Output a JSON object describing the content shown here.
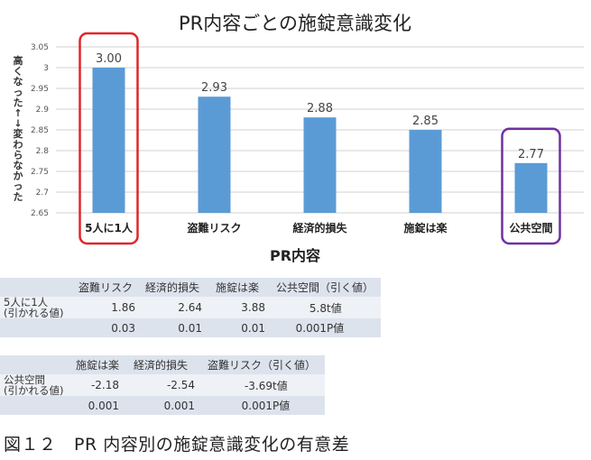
{
  "chart_data": {
    "type": "bar",
    "title": "PR内容ごとの施錠意識変化",
    "xlabel": "PR内容",
    "ylabel_top": "高くなった",
    "ylabel_arrow": "↑ ↓",
    "ylabel_bottom": "変わらなかった",
    "categories": [
      "5人に1人",
      "盗難リスク",
      "経済的損失",
      "施錠は楽",
      "公共空間"
    ],
    "values": [
      3.0,
      2.93,
      2.88,
      2.85,
      2.77
    ],
    "value_labels": [
      "3.00",
      "2.93",
      "2.88",
      "2.85",
      "2.77"
    ],
    "ylim": [
      2.65,
      3.05
    ],
    "yticks": [
      "2.65",
      "2.7",
      "2.75",
      "2.8",
      "2.85",
      "2.9",
      "2.95",
      "3",
      "3.05"
    ],
    "grid": true,
    "bar_color": "#5b9bd5",
    "highlights": [
      {
        "category": "5人に1人",
        "color": "#e0262b"
      },
      {
        "category": "公共空間",
        "color": "#7030a0"
      }
    ]
  },
  "table1": {
    "headers": [
      "",
      "盗難リスク",
      "経済的損失",
      "施錠は楽",
      "公共空間（引く値）"
    ],
    "row_label_line1": "5人に1人",
    "row_label_line2": "(引かれる値)",
    "t_values": [
      "1.86",
      "2.64",
      "3.88",
      "5.8"
    ],
    "t_label": "t値",
    "p_values": [
      "0.03",
      "0.01",
      "0.01",
      "0.001"
    ],
    "p_label": "P値"
  },
  "table2": {
    "headers": [
      "",
      "施錠は楽",
      "経済的損失",
      "盗難リスク（引く値）"
    ],
    "row_label_line1": "公共空間",
    "row_label_line2": "(引かれる値)",
    "t_values": [
      "-2.18",
      "-2.54",
      "-3.69"
    ],
    "t_label": "t値",
    "p_values": [
      "0.001",
      "0.001",
      "0.001"
    ],
    "p_label": "P値"
  },
  "caption": "図１２　PR 内容別の施錠意識変化の有意差"
}
